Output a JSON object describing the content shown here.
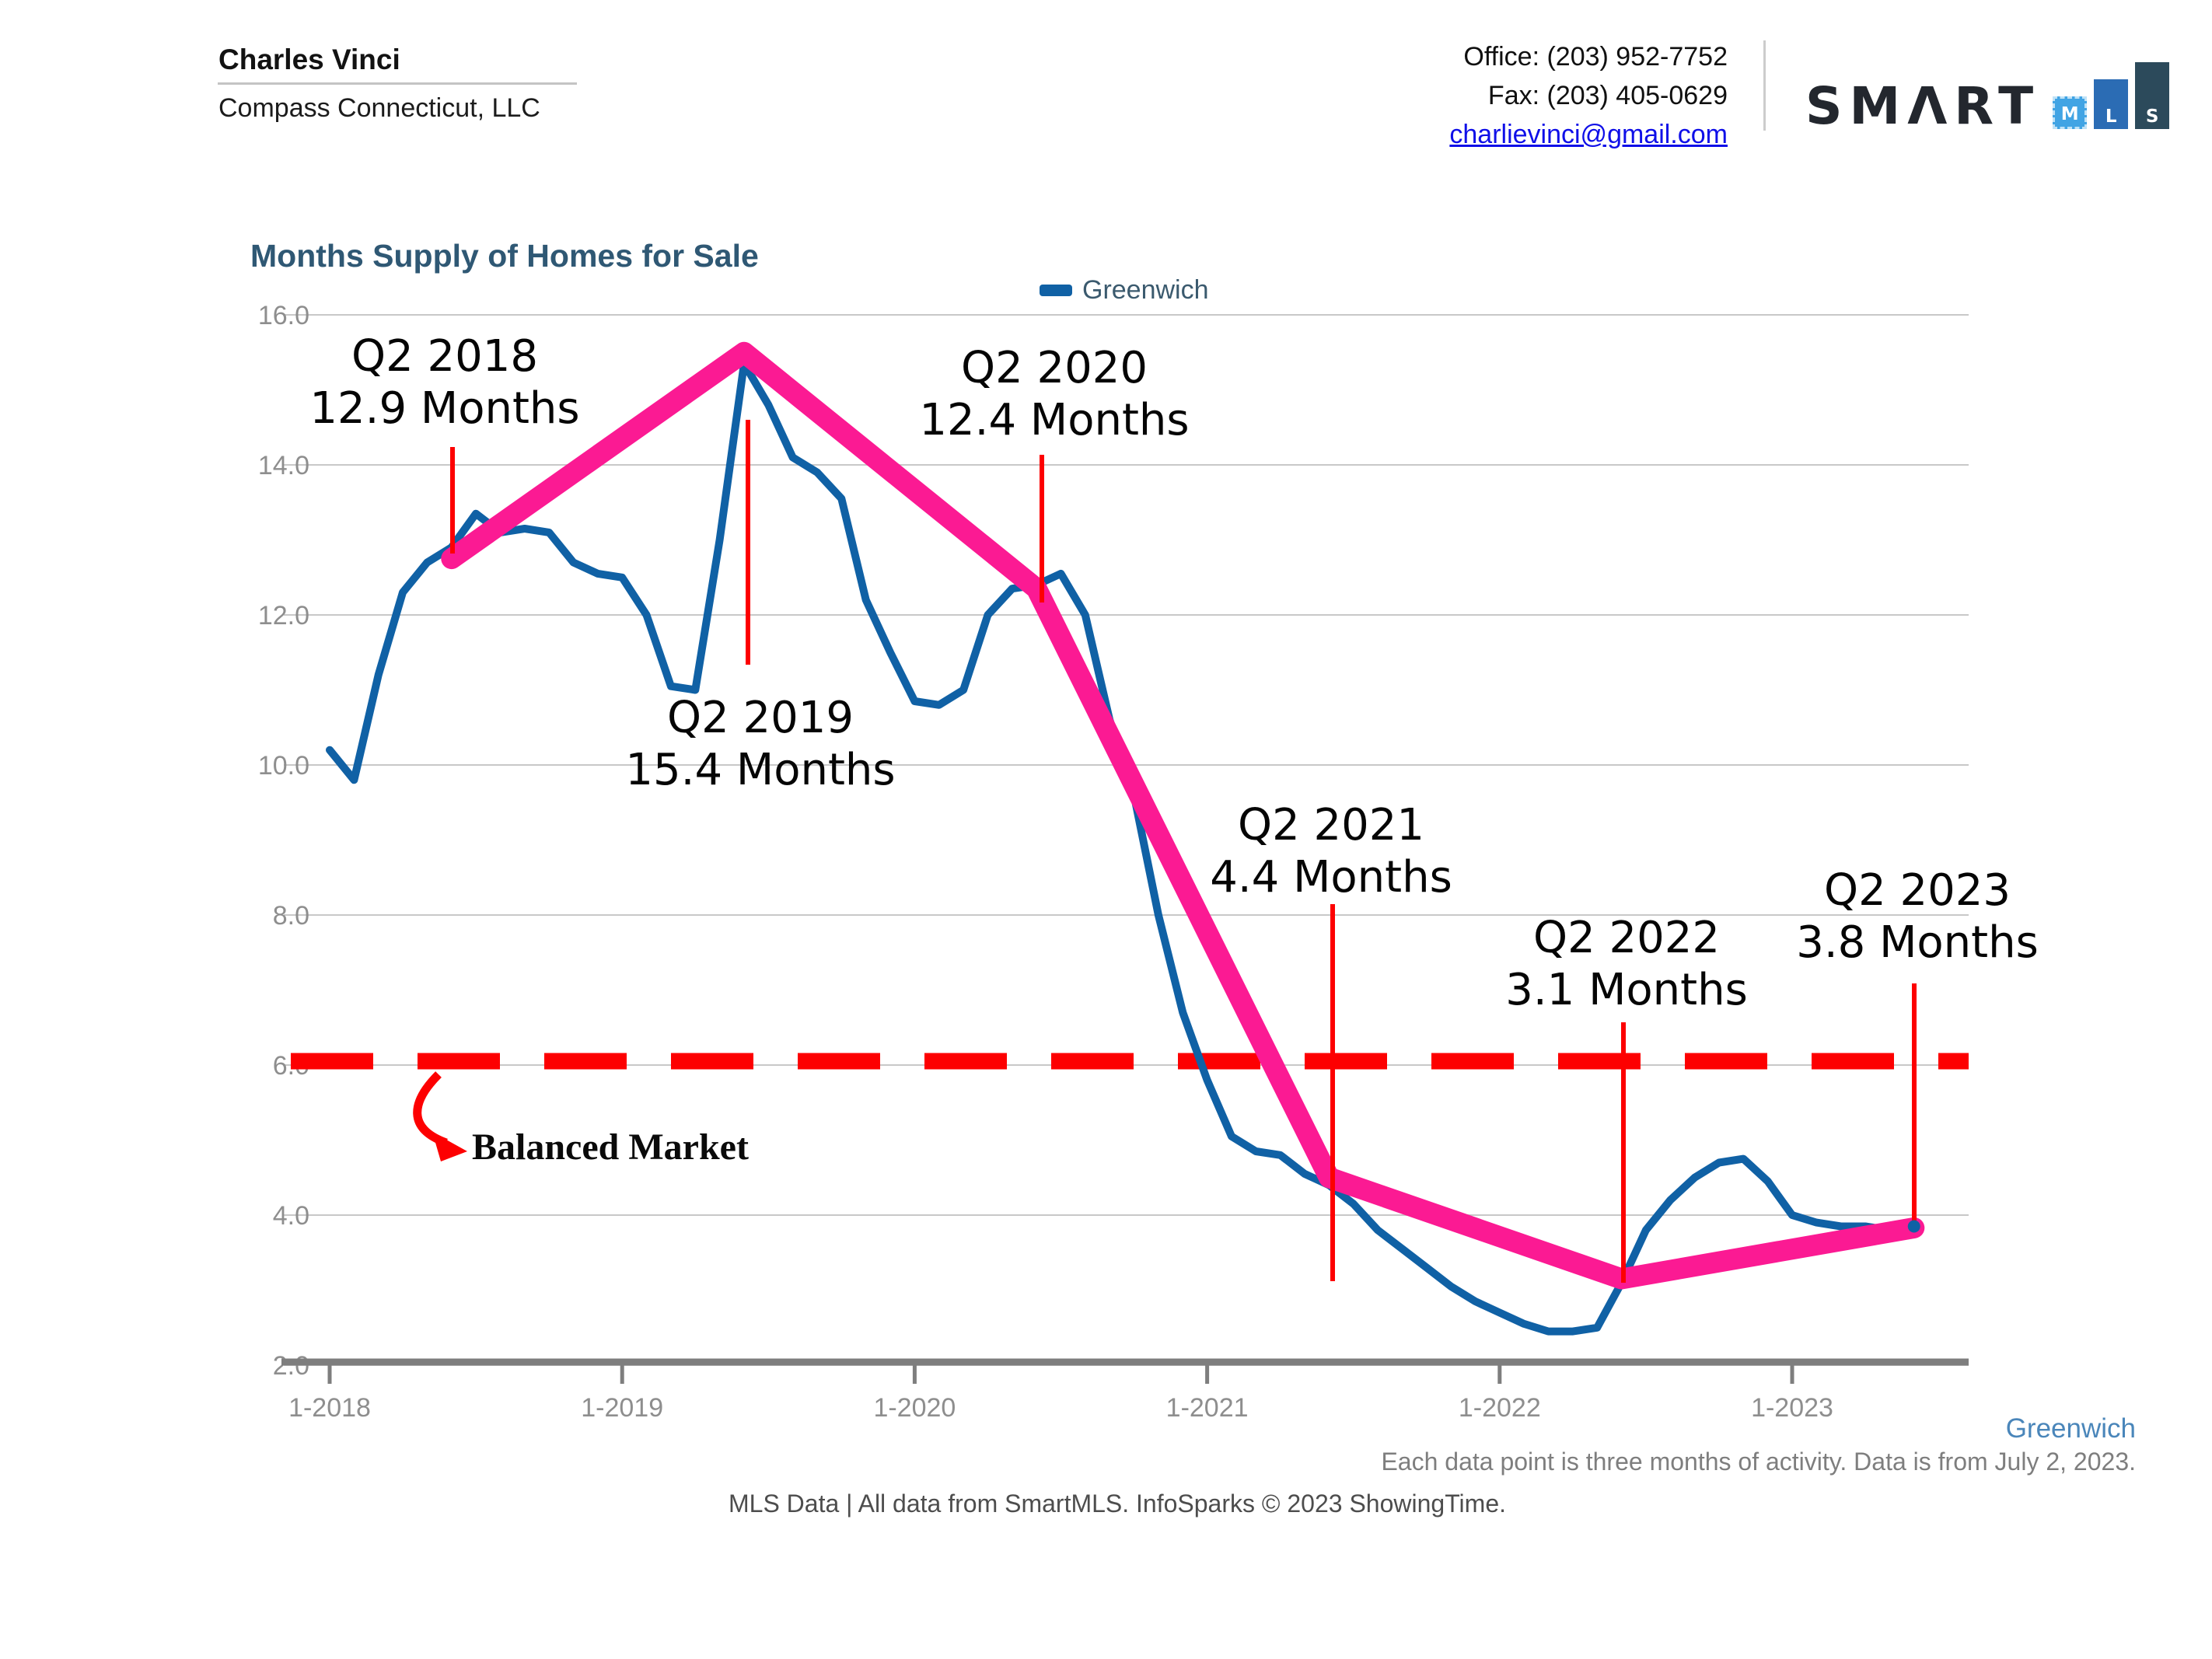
{
  "header": {
    "agent_name": "Charles Vinci",
    "company": "Compass Connecticut, LLC",
    "office_phone": "Office: (203) 952-7752",
    "fax": "Fax: (203) 405-0629",
    "email": "charlievinci@gmail.com",
    "logo": {
      "brand": "SMΛRT",
      "bars": [
        "M",
        "L",
        "S"
      ]
    }
  },
  "chart": {
    "footnote": "Each data point is three months of activity. Data is from July 2, 2023.",
    "credit": "MLS Data | All data from SmartMLS. InfoSparks © 2023 ShowingTime."
  },
  "chart_data": {
    "type": "line",
    "title": "Months Supply of Homes for Sale",
    "ylim": [
      2.0,
      16.0
    ],
    "y_ticks": [
      16,
      14,
      12,
      10,
      8,
      6,
      4,
      2
    ],
    "x_tick_labels": [
      "1-2018",
      "1-2019",
      "1-2020",
      "1-2021",
      "1-2022",
      "1-2023"
    ],
    "grid": true,
    "legend_position": "top",
    "x_monthly_start": "1-2018",
    "x_monthly_end": "6-2023",
    "series": [
      {
        "name": "Greenwich",
        "values": [
          10.2,
          9.8,
          11.2,
          12.3,
          12.7,
          12.9,
          13.35,
          13.1,
          13.15,
          13.1,
          12.7,
          12.55,
          12.5,
          12.0,
          11.05,
          11.0,
          13.0,
          15.35,
          14.8,
          14.1,
          13.9,
          13.55,
          12.2,
          11.5,
          10.85,
          10.8,
          11.0,
          12.0,
          12.35,
          12.4,
          12.55,
          12.0,
          10.6,
          9.6,
          8.0,
          6.7,
          5.8,
          5.05,
          4.85,
          4.8,
          4.55,
          4.4,
          4.15,
          3.8,
          3.55,
          3.3,
          3.05,
          2.85,
          2.7,
          2.55,
          2.45,
          2.45,
          2.5,
          3.1,
          3.8,
          4.2,
          4.5,
          4.7,
          4.75,
          4.45,
          4.0,
          3.9,
          3.85,
          3.85,
          3.8,
          3.85
        ]
      }
    ],
    "trend_line": {
      "name": "Q2-to-Q2 trend highlight",
      "points": [
        {
          "m": 5,
          "v": 12.75
        },
        {
          "m": 17,
          "v": 15.5
        },
        {
          "m": 29,
          "v": 12.35
        },
        {
          "m": 41,
          "v": 4.5
        },
        {
          "m": 53,
          "v": 3.15
        },
        {
          "m": 65,
          "v": 3.83
        }
      ]
    },
    "balanced_market_line": {
      "value": 6.0,
      "label": "Balanced Market"
    },
    "annotations": [
      {
        "id": "q2-2018",
        "quarter": "Q2 2018",
        "value_label": "12.9 Months",
        "value": 12.9,
        "month_index": 5
      },
      {
        "id": "q2-2019",
        "quarter": "Q2 2019",
        "value_label": "15.4 Months",
        "value": 15.4,
        "month_index": 17
      },
      {
        "id": "q2-2020",
        "quarter": "Q2 2020",
        "value_label": "12.4 Months",
        "value": 12.4,
        "month_index": 29
      },
      {
        "id": "q2-2021",
        "quarter": "Q2 2021",
        "value_label": "4.4 Months",
        "value": 4.4,
        "month_index": 41
      },
      {
        "id": "q2-2022",
        "quarter": "Q2 2022",
        "value_label": "3.1 Months",
        "value": 3.1,
        "month_index": 53
      },
      {
        "id": "q2-2023",
        "quarter": "Q2 2023",
        "value_label": "3.8 Months",
        "value": 3.8,
        "month_index": 65
      }
    ]
  },
  "colors": {
    "series_blue": "#1061a5",
    "trend_pink": "#fb1a93",
    "annotation_red": "#fd0001",
    "grid": "#c8c8c8",
    "axis": "#7e7e7e",
    "tick_label": "#8e8e8e",
    "title": "#2f5874",
    "legend_label": "#3b5a6e",
    "greenwich_bottom": "#4a86ba",
    "footnote": "#7e7e7e",
    "credit": "#4d4d4d",
    "email_blue": "#0f0fe8",
    "logo_word": "#23272e",
    "logo_bar_m": "#41a4e4",
    "logo_bar_l": "#2b6cb4",
    "logo_bar_s": "#2c4a5b"
  }
}
